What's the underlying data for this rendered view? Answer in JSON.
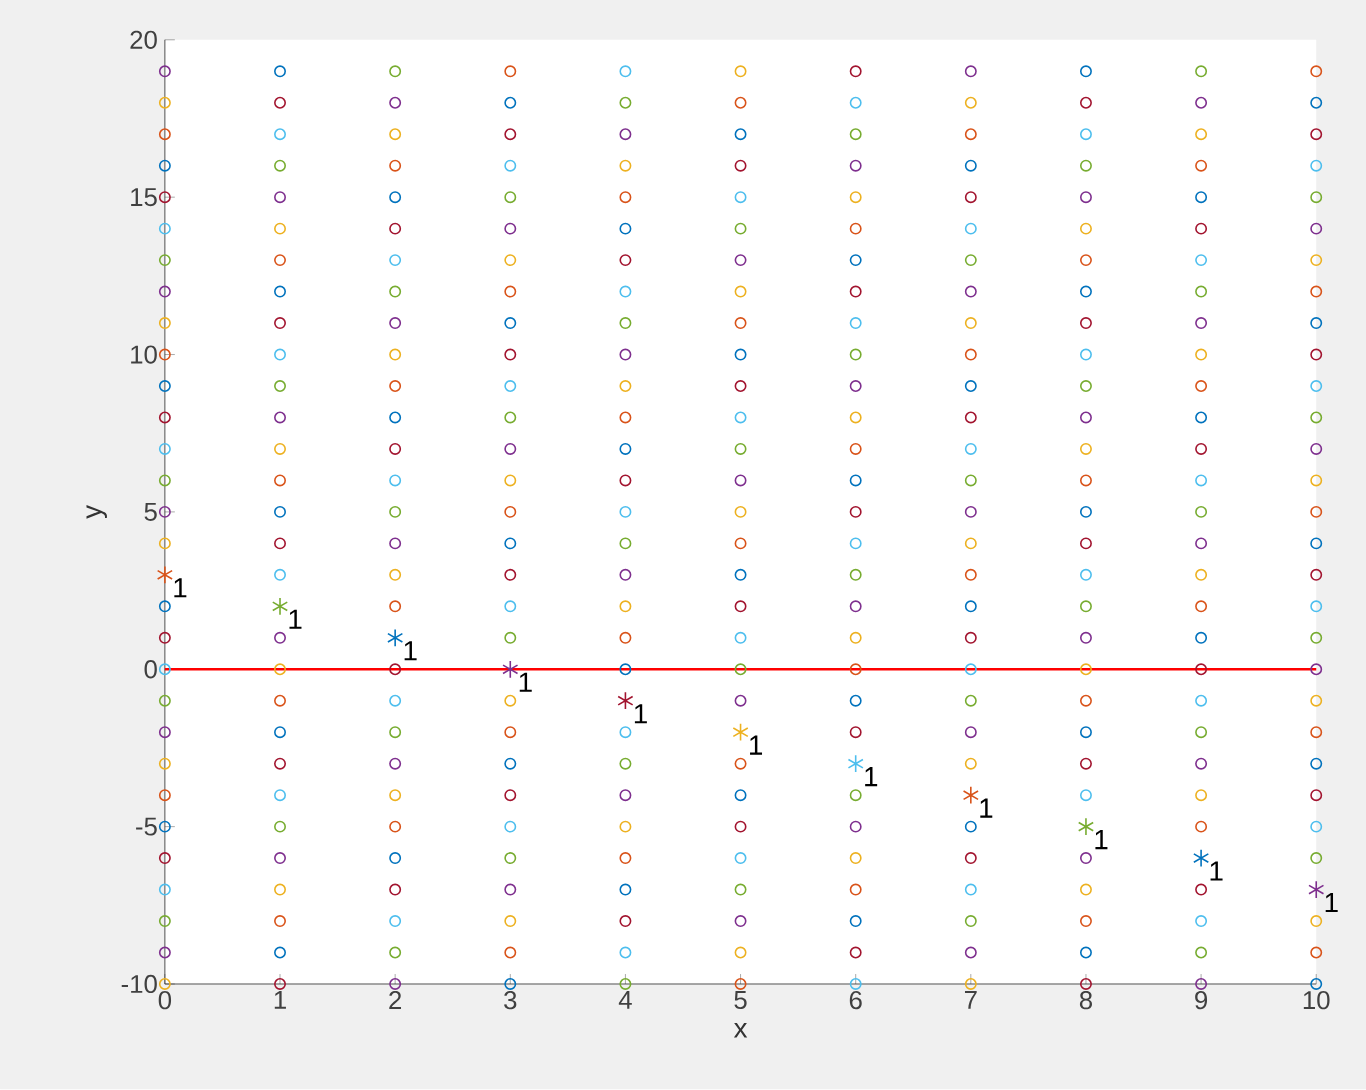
{
  "chart_data": {
    "type": "scatter",
    "xlabel": "x",
    "ylabel": "y",
    "xlim": [
      0,
      10
    ],
    "ylim": [
      -10,
      20
    ],
    "xticks": [
      0,
      1,
      2,
      3,
      4,
      5,
      6,
      7,
      8,
      9,
      10
    ],
    "yticks": [
      -10,
      -5,
      0,
      5,
      10,
      15,
      20
    ],
    "marker": "circle",
    "grid": false,
    "ref_lines": [
      {
        "axis": "y",
        "value": 0,
        "color": "#ff0000"
      }
    ],
    "annotations": [
      {
        "text": "1",
        "x": 0,
        "y": 3
      },
      {
        "text": "1",
        "x": 1,
        "y": 2
      },
      {
        "text": "1",
        "x": 2,
        "y": 1
      },
      {
        "text": "1",
        "x": 3,
        "y": 0
      },
      {
        "text": "1",
        "x": 4,
        "y": -1
      },
      {
        "text": "1",
        "x": 5,
        "y": -2
      },
      {
        "text": "1",
        "x": 6,
        "y": -3
      },
      {
        "text": "1",
        "x": 7,
        "y": -4
      },
      {
        "text": "1",
        "x": 8,
        "y": -5
      },
      {
        "text": "1",
        "x": 9,
        "y": -6
      },
      {
        "text": "1",
        "x": 10,
        "y": -7
      }
    ],
    "series": [
      {
        "x": [
          0,
          0,
          0,
          0,
          0,
          0,
          0,
          0,
          0,
          0,
          0,
          0,
          0,
          0,
          0,
          0,
          0,
          0,
          0,
          0,
          0,
          0,
          0,
          0,
          0,
          0,
          0,
          0,
          0
        ],
        "values": [
          -10,
          -9,
          -8,
          -7,
          -6,
          -5,
          -4,
          -3,
          -2,
          -1,
          0,
          1,
          2,
          4,
          5,
          6,
          7,
          8,
          9,
          10,
          11,
          12,
          13,
          14,
          15,
          16,
          17,
          18,
          19
        ],
        "colors": [
          "#edb120",
          "#7e2f8e",
          "#77ac30",
          "#4dbeee",
          "#a2142f",
          "#0072bd",
          "#d95319",
          "#edb120",
          "#7e2f8e",
          "#77ac30",
          "#4dbeee",
          "#a2142f",
          "#0072bd",
          "#edb120",
          "#7e2f8e",
          "#77ac30",
          "#4dbeee",
          "#a2142f",
          "#0072bd",
          "#d95319",
          "#edb120",
          "#7e2f8e",
          "#77ac30",
          "#4dbeee",
          "#a2142f",
          "#0072bd",
          "#d95319",
          "#edb120",
          "#7e2f8e"
        ]
      },
      {
        "x": [
          1,
          1,
          1,
          1,
          1,
          1,
          1,
          1,
          1,
          1,
          1,
          1,
          1,
          1,
          1,
          1,
          1,
          1,
          1,
          1,
          1,
          1,
          1,
          1,
          1,
          1,
          1,
          1,
          1
        ],
        "values": [
          -10,
          -9,
          -8,
          -7,
          -6,
          -5,
          -4,
          -3,
          -2,
          -1,
          0,
          1,
          3,
          4,
          5,
          6,
          7,
          8,
          9,
          10,
          11,
          12,
          13,
          14,
          15,
          16,
          17,
          18,
          19
        ],
        "colors": [
          "#a2142f",
          "#0072bd",
          "#d95319",
          "#edb120",
          "#7e2f8e",
          "#77ac30",
          "#4dbeee",
          "#a2142f",
          "#0072bd",
          "#d95319",
          "#edb120",
          "#7e2f8e",
          "#4dbeee",
          "#a2142f",
          "#0072bd",
          "#d95319",
          "#edb120",
          "#7e2f8e",
          "#77ac30",
          "#4dbeee",
          "#a2142f",
          "#0072bd",
          "#d95319",
          "#edb120",
          "#7e2f8e",
          "#77ac30",
          "#4dbeee",
          "#a2142f",
          "#0072bd"
        ]
      },
      {
        "x": [
          2,
          2,
          2,
          2,
          2,
          2,
          2,
          2,
          2,
          2,
          2,
          2,
          2,
          2,
          2,
          2,
          2,
          2,
          2,
          2,
          2,
          2,
          2,
          2,
          2,
          2,
          2,
          2,
          2
        ],
        "values": [
          -10,
          -9,
          -8,
          -7,
          -6,
          -5,
          -4,
          -3,
          -2,
          -1,
          0,
          2,
          3,
          4,
          5,
          6,
          7,
          8,
          9,
          10,
          11,
          12,
          13,
          14,
          15,
          16,
          17,
          18,
          19
        ],
        "colors": [
          "#7e2f8e",
          "#77ac30",
          "#4dbeee",
          "#a2142f",
          "#0072bd",
          "#d95319",
          "#edb120",
          "#7e2f8e",
          "#77ac30",
          "#4dbeee",
          "#a2142f",
          "#d95319",
          "#edb120",
          "#7e2f8e",
          "#77ac30",
          "#4dbeee",
          "#a2142f",
          "#0072bd",
          "#d95319",
          "#edb120",
          "#7e2f8e",
          "#77ac30",
          "#4dbeee",
          "#a2142f",
          "#0072bd",
          "#d95319",
          "#edb120",
          "#7e2f8e",
          "#77ac30"
        ]
      },
      {
        "x": [
          3,
          3,
          3,
          3,
          3,
          3,
          3,
          3,
          3,
          3,
          3,
          3,
          3,
          3,
          3,
          3,
          3,
          3,
          3,
          3,
          3,
          3,
          3,
          3,
          3,
          3,
          3,
          3,
          3
        ],
        "values": [
          -10,
          -9,
          -8,
          -7,
          -6,
          -5,
          -4,
          -3,
          -2,
          -1,
          1,
          2,
          3,
          4,
          5,
          6,
          7,
          8,
          9,
          10,
          11,
          12,
          13,
          14,
          15,
          16,
          17,
          18,
          19
        ],
        "colors": [
          "#0072bd",
          "#d95319",
          "#edb120",
          "#7e2f8e",
          "#77ac30",
          "#4dbeee",
          "#a2142f",
          "#0072bd",
          "#d95319",
          "#edb120",
          "#77ac30",
          "#4dbeee",
          "#a2142f",
          "#0072bd",
          "#d95319",
          "#edb120",
          "#7e2f8e",
          "#77ac30",
          "#4dbeee",
          "#a2142f",
          "#0072bd",
          "#d95319",
          "#edb120",
          "#7e2f8e",
          "#77ac30",
          "#4dbeee",
          "#a2142f",
          "#0072bd",
          "#d95319"
        ]
      },
      {
        "x": [
          4,
          4,
          4,
          4,
          4,
          4,
          4,
          4,
          4,
          4,
          4,
          4,
          4,
          4,
          4,
          4,
          4,
          4,
          4,
          4,
          4,
          4,
          4,
          4,
          4,
          4,
          4,
          4,
          4
        ],
        "values": [
          -10,
          -9,
          -8,
          -7,
          -6,
          -5,
          -4,
          -3,
          -2,
          0,
          1,
          2,
          3,
          4,
          5,
          6,
          7,
          8,
          9,
          10,
          11,
          12,
          13,
          14,
          15,
          16,
          17,
          18,
          19
        ],
        "colors": [
          "#77ac30",
          "#4dbeee",
          "#a2142f",
          "#0072bd",
          "#d95319",
          "#edb120",
          "#7e2f8e",
          "#77ac30",
          "#4dbeee",
          "#0072bd",
          "#d95319",
          "#edb120",
          "#7e2f8e",
          "#77ac30",
          "#4dbeee",
          "#a2142f",
          "#0072bd",
          "#d95319",
          "#edb120",
          "#7e2f8e",
          "#77ac30",
          "#4dbeee",
          "#a2142f",
          "#0072bd",
          "#d95319",
          "#edb120",
          "#7e2f8e",
          "#77ac30",
          "#4dbeee"
        ]
      },
      {
        "x": [
          5,
          5,
          5,
          5,
          5,
          5,
          5,
          5,
          5,
          5,
          5,
          5,
          5,
          5,
          5,
          5,
          5,
          5,
          5,
          5,
          5,
          5,
          5,
          5,
          5,
          5,
          5,
          5,
          5
        ],
        "values": [
          -10,
          -9,
          -8,
          -7,
          -6,
          -5,
          -4,
          -3,
          -1,
          0,
          1,
          2,
          3,
          4,
          5,
          6,
          7,
          8,
          9,
          10,
          11,
          12,
          13,
          14,
          15,
          16,
          17,
          18,
          19
        ],
        "colors": [
          "#d95319",
          "#edb120",
          "#7e2f8e",
          "#77ac30",
          "#4dbeee",
          "#a2142f",
          "#0072bd",
          "#d95319",
          "#7e2f8e",
          "#77ac30",
          "#4dbeee",
          "#a2142f",
          "#0072bd",
          "#d95319",
          "#edb120",
          "#7e2f8e",
          "#77ac30",
          "#4dbeee",
          "#a2142f",
          "#0072bd",
          "#d95319",
          "#edb120",
          "#7e2f8e",
          "#77ac30",
          "#4dbeee",
          "#a2142f",
          "#0072bd",
          "#d95319",
          "#edb120"
        ]
      },
      {
        "x": [
          6,
          6,
          6,
          6,
          6,
          6,
          6,
          6,
          6,
          6,
          6,
          6,
          6,
          6,
          6,
          6,
          6,
          6,
          6,
          6,
          6,
          6,
          6,
          6,
          6,
          6,
          6,
          6,
          6
        ],
        "values": [
          -10,
          -9,
          -8,
          -7,
          -6,
          -5,
          -4,
          -2,
          -1,
          0,
          1,
          2,
          3,
          4,
          5,
          6,
          7,
          8,
          9,
          10,
          11,
          12,
          13,
          14,
          15,
          16,
          17,
          18,
          19
        ],
        "colors": [
          "#4dbeee",
          "#a2142f",
          "#0072bd",
          "#d95319",
          "#edb120",
          "#7e2f8e",
          "#77ac30",
          "#a2142f",
          "#0072bd",
          "#d95319",
          "#edb120",
          "#7e2f8e",
          "#77ac30",
          "#4dbeee",
          "#a2142f",
          "#0072bd",
          "#d95319",
          "#edb120",
          "#7e2f8e",
          "#77ac30",
          "#4dbeee",
          "#a2142f",
          "#0072bd",
          "#d95319",
          "#edb120",
          "#7e2f8e",
          "#77ac30",
          "#4dbeee",
          "#a2142f"
        ]
      },
      {
        "x": [
          7,
          7,
          7,
          7,
          7,
          7,
          7,
          7,
          7,
          7,
          7,
          7,
          7,
          7,
          7,
          7,
          7,
          7,
          7,
          7,
          7,
          7,
          7,
          7,
          7,
          7,
          7,
          7,
          7
        ],
        "values": [
          -10,
          -9,
          -8,
          -7,
          -6,
          -5,
          -3,
          -2,
          -1,
          0,
          1,
          2,
          3,
          4,
          5,
          6,
          7,
          8,
          9,
          10,
          11,
          12,
          13,
          14,
          15,
          16,
          17,
          18,
          19
        ],
        "colors": [
          "#edb120",
          "#7e2f8e",
          "#77ac30",
          "#4dbeee",
          "#a2142f",
          "#0072bd",
          "#edb120",
          "#7e2f8e",
          "#77ac30",
          "#4dbeee",
          "#a2142f",
          "#0072bd",
          "#d95319",
          "#edb120",
          "#7e2f8e",
          "#77ac30",
          "#4dbeee",
          "#a2142f",
          "#0072bd",
          "#d95319",
          "#edb120",
          "#7e2f8e",
          "#77ac30",
          "#4dbeee",
          "#a2142f",
          "#0072bd",
          "#d95319",
          "#edb120",
          "#7e2f8e"
        ]
      },
      {
        "x": [
          8,
          8,
          8,
          8,
          8,
          8,
          8,
          8,
          8,
          8,
          8,
          8,
          8,
          8,
          8,
          8,
          8,
          8,
          8,
          8,
          8,
          8,
          8,
          8,
          8,
          8,
          8,
          8,
          8
        ],
        "values": [
          -10,
          -9,
          -8,
          -7,
          -6,
          -4,
          -3,
          -2,
          -1,
          0,
          1,
          2,
          3,
          4,
          5,
          6,
          7,
          8,
          9,
          10,
          11,
          12,
          13,
          14,
          15,
          16,
          17,
          18,
          19
        ],
        "colors": [
          "#a2142f",
          "#0072bd",
          "#d95319",
          "#edb120",
          "#7e2f8e",
          "#4dbeee",
          "#a2142f",
          "#0072bd",
          "#d95319",
          "#edb120",
          "#7e2f8e",
          "#77ac30",
          "#4dbeee",
          "#a2142f",
          "#0072bd",
          "#d95319",
          "#edb120",
          "#7e2f8e",
          "#77ac30",
          "#4dbeee",
          "#a2142f",
          "#0072bd",
          "#d95319",
          "#edb120",
          "#7e2f8e",
          "#77ac30",
          "#4dbeee",
          "#a2142f",
          "#0072bd"
        ]
      },
      {
        "x": [
          9,
          9,
          9,
          9,
          9,
          9,
          9,
          9,
          9,
          9,
          9,
          9,
          9,
          9,
          9,
          9,
          9,
          9,
          9,
          9,
          9,
          9,
          9,
          9,
          9,
          9,
          9,
          9,
          9
        ],
        "values": [
          -10,
          -9,
          -8,
          -7,
          -5,
          -4,
          -3,
          -2,
          -1,
          0,
          1,
          2,
          3,
          4,
          5,
          6,
          7,
          8,
          9,
          10,
          11,
          12,
          13,
          14,
          15,
          16,
          17,
          18,
          19
        ],
        "colors": [
          "#7e2f8e",
          "#77ac30",
          "#4dbeee",
          "#a2142f",
          "#d95319",
          "#edb120",
          "#7e2f8e",
          "#77ac30",
          "#4dbeee",
          "#a2142f",
          "#0072bd",
          "#d95319",
          "#edb120",
          "#7e2f8e",
          "#77ac30",
          "#4dbeee",
          "#a2142f",
          "#0072bd",
          "#d95319",
          "#edb120",
          "#7e2f8e",
          "#77ac30",
          "#4dbeee",
          "#a2142f",
          "#0072bd",
          "#d95319",
          "#edb120",
          "#7e2f8e",
          "#77ac30"
        ]
      },
      {
        "x": [
          10,
          10,
          10,
          10,
          10,
          10,
          10,
          10,
          10,
          10,
          10,
          10,
          10,
          10,
          10,
          10,
          10,
          10,
          10,
          10,
          10,
          10,
          10,
          10,
          10,
          10,
          10,
          10,
          10
        ],
        "values": [
          -10,
          -9,
          -8,
          -6,
          -5,
          -4,
          -3,
          -2,
          -1,
          0,
          1,
          2,
          3,
          4,
          5,
          6,
          7,
          8,
          9,
          10,
          11,
          12,
          13,
          14,
          15,
          16,
          17,
          18,
          19
        ],
        "colors": [
          "#0072bd",
          "#d95319",
          "#edb120",
          "#77ac30",
          "#4dbeee",
          "#a2142f",
          "#0072bd",
          "#d95319",
          "#edb120",
          "#7e2f8e",
          "#77ac30",
          "#4dbeee",
          "#a2142f",
          "#0072bd",
          "#d95319",
          "#edb120",
          "#7e2f8e",
          "#77ac30",
          "#4dbeee",
          "#a2142f",
          "#0072bd",
          "#d95319",
          "#edb120",
          "#7e2f8e",
          "#77ac30",
          "#4dbeee",
          "#a2142f",
          "#0072bd",
          "#d95319"
        ]
      },
      {
        "marker": "cross",
        "x": [
          0,
          1,
          2,
          3,
          4,
          5,
          6,
          7,
          8,
          9,
          10
        ],
        "values": [
          3,
          2,
          1,
          0,
          -1,
          -2,
          -3,
          -4,
          -5,
          -6,
          -7
        ],
        "colors": [
          "#d95319",
          "#77ac30",
          "#0072bd",
          "#7e2f8e",
          "#a2142f",
          "#edb120",
          "#4dbeee",
          "#d95319",
          "#77ac30",
          "#0072bd",
          "#7e2f8e"
        ]
      }
    ]
  }
}
